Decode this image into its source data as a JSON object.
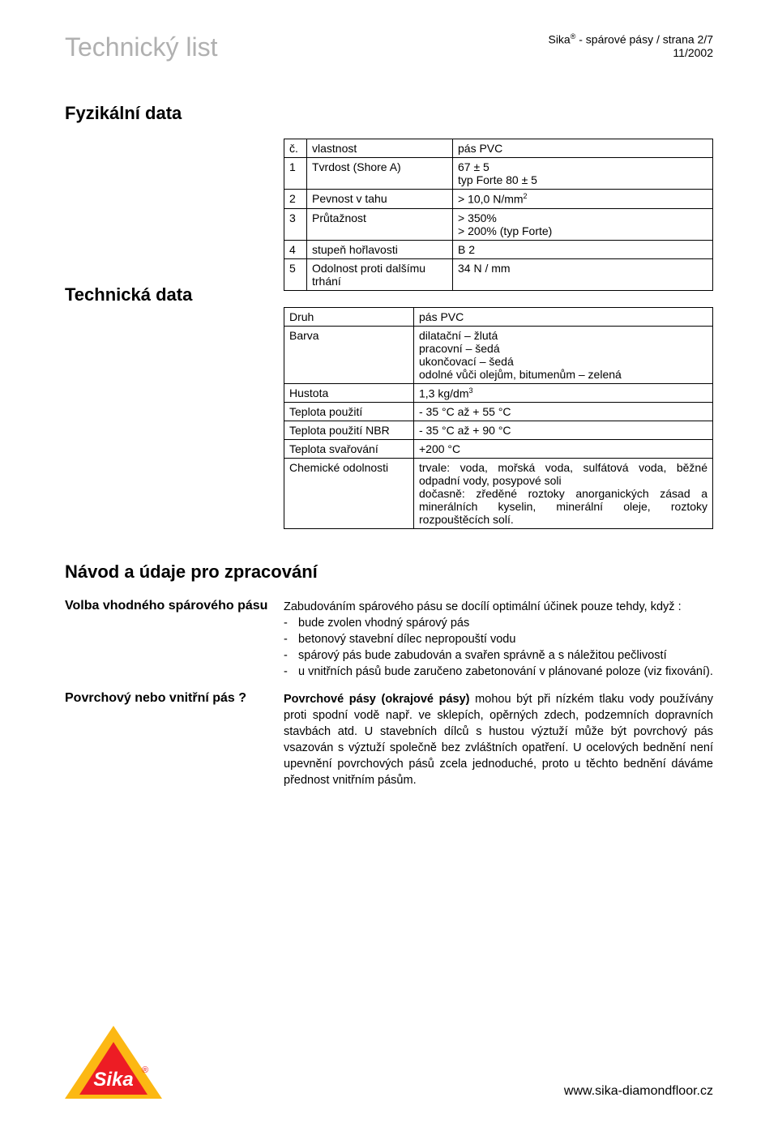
{
  "header": {
    "doc_title": "Technický list",
    "brand": "Sika",
    "brand_sup": "®",
    "brand_tail": " - spárové pásy / strana 2/7",
    "date": "11/2002"
  },
  "section1": {
    "title": "Fyzikální data",
    "tech_title": "Technická data",
    "table1": {
      "h1": "č.",
      "h2": "vlastnost",
      "h3": "pás PVC",
      "rows": [
        {
          "n": "1",
          "prop": "Tvrdost (Shore A)",
          "val": "67 ± 5\ntyp Forte 80 ± 5"
        },
        {
          "n": "2",
          "prop": "Pevnost v tahu",
          "val": "> 10,0 N/mm"
        },
        {
          "n": "3",
          "prop": "Průtažnost",
          "val": "> 350%\n> 200% (typ Forte)"
        },
        {
          "n": "4",
          "prop": "stupeň hořlavosti",
          "val": "B 2"
        },
        {
          "n": "5",
          "prop": "Odolnost proti dalšímu trhání",
          "val": "34 N / mm"
        }
      ],
      "sup2": "2"
    },
    "table2": {
      "rows": [
        {
          "k": "Druh",
          "v": "pás PVC"
        },
        {
          "k": "Barva",
          "v": "dilatační – žlutá\npracovní – šedá\nukončovací – šedá\nodolné vůči olejům, bitumenům – zelená"
        },
        {
          "k": "Hustota",
          "v": "1,3 kg/dm"
        },
        {
          "k": "Teplota použití",
          "v": "- 35 °C až + 55 °C"
        },
        {
          "k": "Teplota použití NBR",
          "v": "- 35 °C až + 90 °C"
        },
        {
          "k": "Teplota svařování",
          "v": "+200 °C"
        },
        {
          "k": "Chemické odolnosti",
          "v": "trvale: voda, mořská voda, sulfátová voda, běžné odpadní vody, posypové soli\ndočasně: zředěné roztoky anorganických zásad a minerálních kyselin, minerální oleje, roztoky rozpouštěcích solí."
        }
      ],
      "sup3": "3"
    }
  },
  "section2": {
    "title": "Návod a údaje pro zpracování",
    "sub1": {
      "label": "Volba vhodného spárového pásu",
      "intro": "Zabudováním spárového pásu se docílí optimální účinek pouze tehdy, když :",
      "items": [
        "bude zvolen vhodný spárový pás",
        "betonový stavební dílec nepropouští vodu",
        "spárový pás bude zabudován a svařen správně a s náležitou pečlivostí",
        "u vnitřních pásů bude zaručeno zabetonování v plánované poloze (viz fixování)."
      ]
    },
    "sub2": {
      "label": "Povrchový nebo vnitřní pás ?",
      "body": "Povrchové pásy (okrajové pásy) mohou být při nízkém tlaku vody používány proti spodní vodě např. ve sklepích, opěrných zdech, podzemních dopravních stavbách atd. U stavebních dílců s hustou výztuží může být povrchový pás vsazován s výztuží společně bez zvláštních opatření. U ocelových bednění není upevnění povrchových pásů zcela jednoduché, proto u těchto bednění dáváme přednost vnitřním pásům.",
      "bold_lead": "Povrchové pásy (okrajové pásy)"
    }
  },
  "footer": {
    "url": "www.sika-diamondfloor.cz",
    "logo_bg": "#fcb813",
    "logo_fg": "#ed1c24",
    "logo_text_color": "#ffffff",
    "logo_text": "Sika"
  }
}
